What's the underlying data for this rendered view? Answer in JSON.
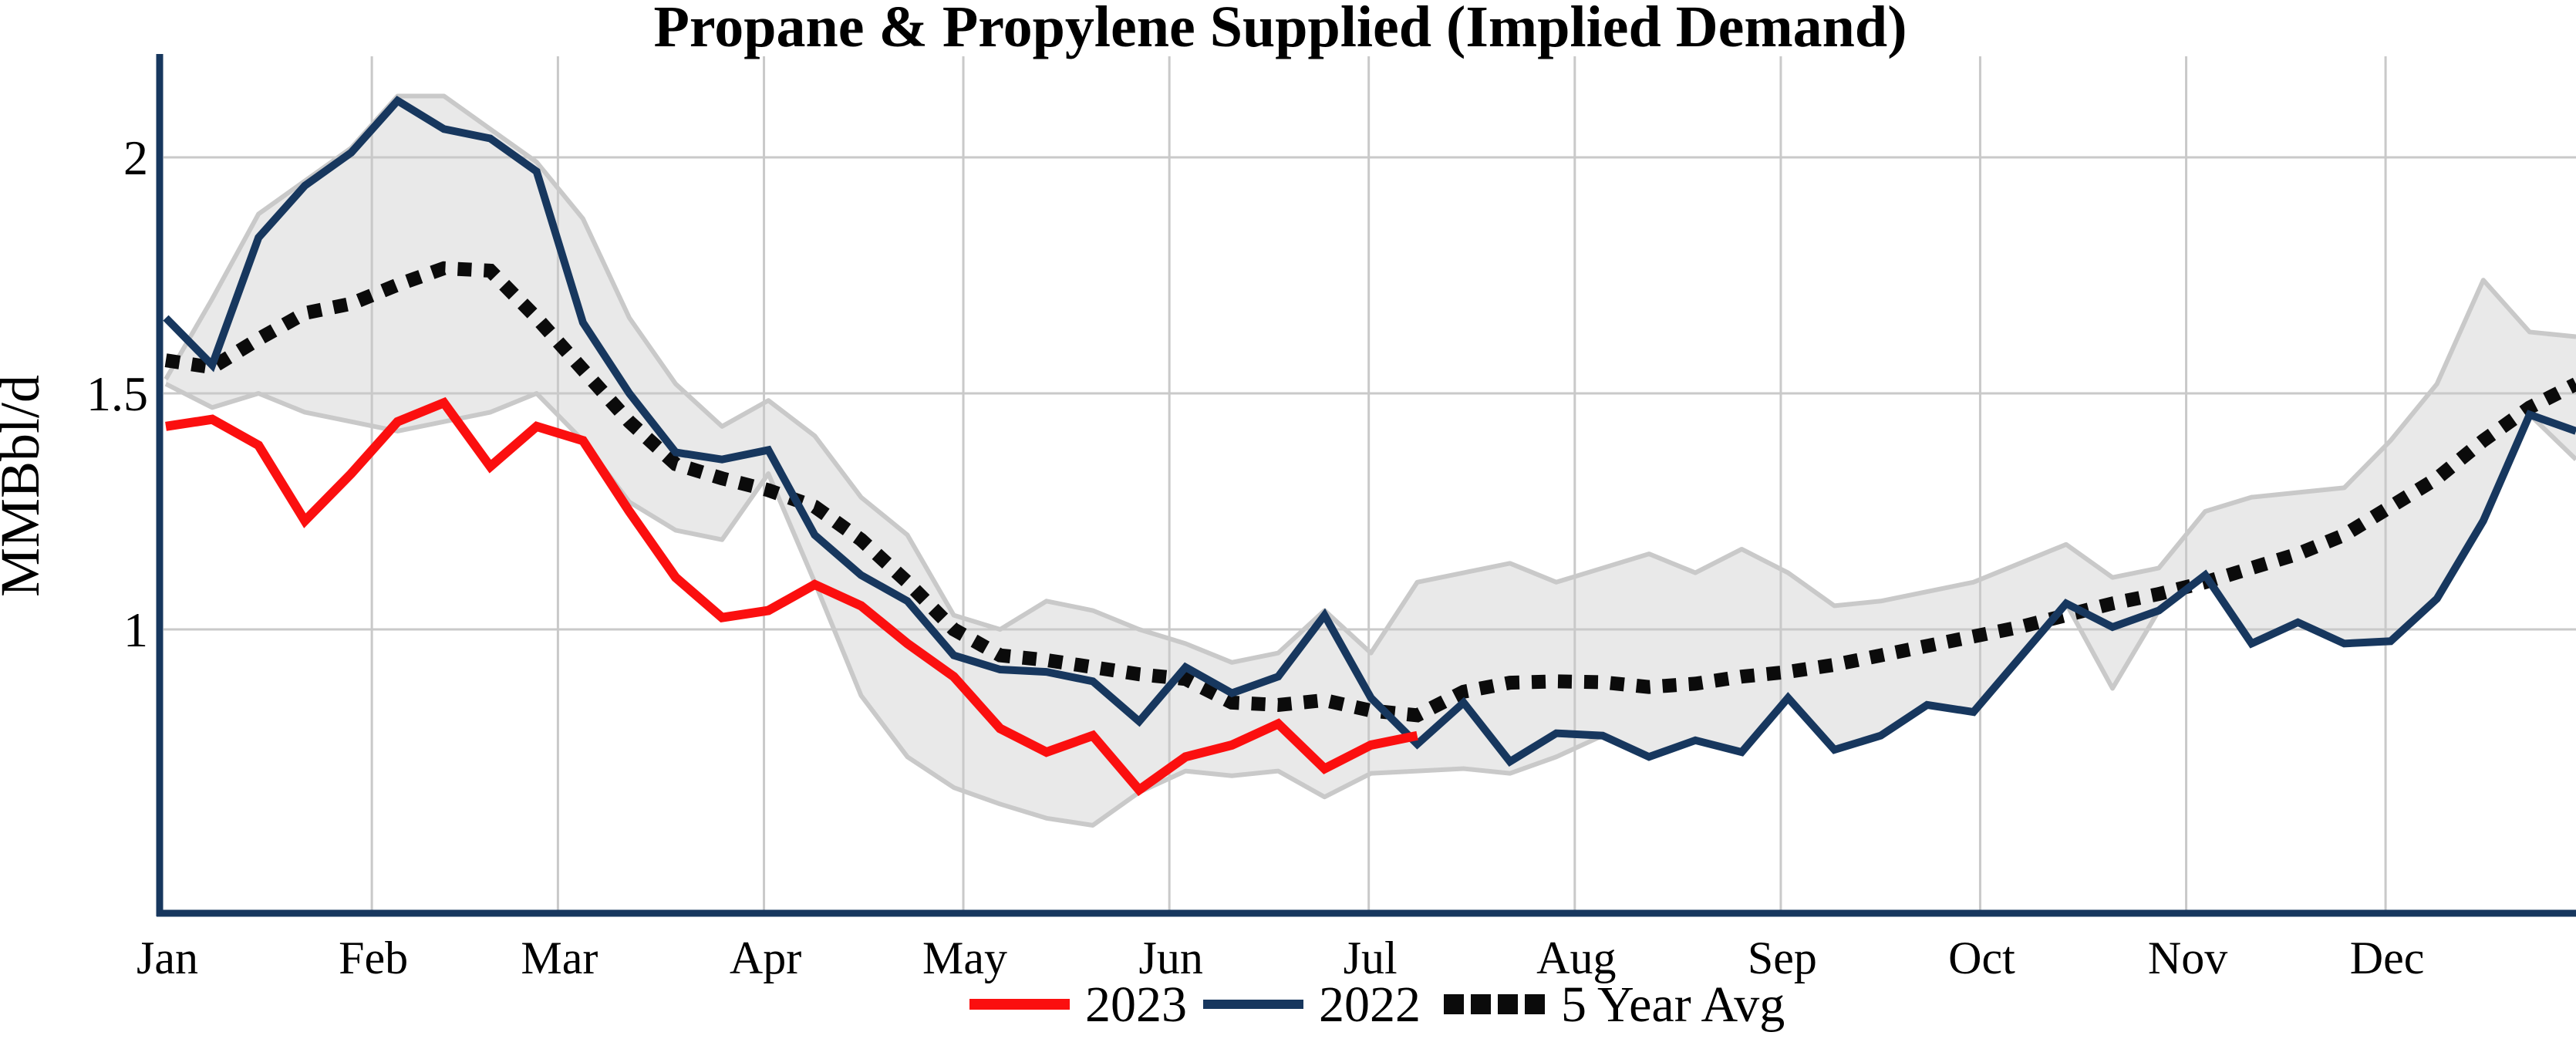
{
  "chart_data": {
    "type": "line",
    "title": "Propane & Propylene Supplied (Implied Demand)",
    "ylabel": "MMBbl/d",
    "xlabel": "",
    "unit": "MMBbl/d",
    "ylim": [
      0.4,
      2.21
    ],
    "grid": "months-vertical and 1.0/1.5/2.0 horizontal",
    "legend_position": "bottom-center",
    "y_ticks": [
      {
        "value": 2,
        "label": "2"
      },
      {
        "value": 1.5,
        "label": "1.5"
      },
      {
        "value": 1,
        "label": "1"
      }
    ],
    "months": [
      {
        "label": "Jan",
        "day": 0
      },
      {
        "label": "Feb",
        "day": 31
      },
      {
        "label": "Mar",
        "day": 59
      },
      {
        "label": "Apr",
        "day": 90
      },
      {
        "label": "May",
        "day": 120
      },
      {
        "label": "Jun",
        "day": 151
      },
      {
        "label": "Jul",
        "day": 181
      },
      {
        "label": "Aug",
        "day": 212
      },
      {
        "label": "Sep",
        "day": 243
      },
      {
        "label": "Oct",
        "day": 273
      },
      {
        "label": "Nov",
        "day": 304
      },
      {
        "label": "Dec",
        "day": 334
      }
    ],
    "weeks": 53,
    "series": [
      {
        "name": "2023",
        "color": "#fb0f0f",
        "width": 12,
        "style": "solid",
        "values": [
          1.43,
          1.445,
          1.39,
          1.23,
          1.33,
          1.44,
          1.48,
          1.345,
          1.43,
          1.4,
          1.25,
          1.11,
          1.025,
          1.04,
          1.095,
          1.05,
          0.97,
          0.9,
          0.79,
          0.74,
          0.775,
          0.66,
          0.73,
          0.755,
          0.8,
          0.705,
          0.755,
          0.775
        ]
      },
      {
        "name": "2022",
        "color": "#17375e",
        "width": 10,
        "style": "solid",
        "values": [
          1.66,
          1.56,
          1.83,
          1.94,
          2.01,
          2.12,
          2.06,
          2.04,
          1.97,
          1.65,
          1.5,
          1.375,
          1.36,
          1.38,
          1.2,
          1.115,
          1.06,
          0.945,
          0.915,
          0.91,
          0.89,
          0.805,
          0.92,
          0.865,
          0.9,
          1.03,
          0.855,
          0.757,
          0.845,
          0.72,
          0.78,
          0.775,
          0.73,
          0.765,
          0.74,
          0.855,
          0.745,
          0.775,
          0.84,
          0.825,
          0.94,
          1.055,
          1.005,
          1.04,
          1.115,
          0.97,
          1.015,
          0.97,
          0.975,
          1.065,
          1.23,
          1.455,
          1.42
        ]
      },
      {
        "name": "5 Year Avg",
        "color": "#0b0b0b",
        "width": 18,
        "style": "dotted",
        "values": [
          1.57,
          1.555,
          1.615,
          1.67,
          1.69,
          1.73,
          1.765,
          1.76,
          1.66,
          1.55,
          1.44,
          1.35,
          1.32,
          1.295,
          1.26,
          1.19,
          1.1,
          1.0,
          0.945,
          0.935,
          0.92,
          0.905,
          0.895,
          0.845,
          0.84,
          0.85,
          0.828,
          0.818,
          0.868,
          0.887,
          0.89,
          0.888,
          0.878,
          0.885,
          0.9,
          0.91,
          0.925,
          0.945,
          0.965,
          0.985,
          1.005,
          1.03,
          1.055,
          1.075,
          1.1,
          1.13,
          1.16,
          1.2,
          1.26,
          1.32,
          1.4,
          1.47,
          1.52
        ]
      }
    ],
    "band": {
      "name": "5-year range",
      "fill": "#e9e9e9",
      "edge": "#c9c9c9",
      "top": [
        1.53,
        1.7,
        1.88,
        1.95,
        2.02,
        2.13,
        2.13,
        2.06,
        1.99,
        1.87,
        1.66,
        1.52,
        1.43,
        1.485,
        1.41,
        1.28,
        1.2,
        1.03,
        1.0,
        1.06,
        1.04,
        1.0,
        0.97,
        0.93,
        0.95,
        1.04,
        0.95,
        1.1,
        1.12,
        1.14,
        1.1,
        1.13,
        1.16,
        1.12,
        1.17,
        1.12,
        1.05,
        1.06,
        1.08,
        1.1,
        1.14,
        1.18,
        1.11,
        1.13,
        1.25,
        1.28,
        1.29,
        1.3,
        1.4,
        1.52,
        1.74,
        1.63,
        1.62
      ],
      "bottom": [
        1.52,
        1.47,
        1.5,
        1.46,
        1.44,
        1.42,
        1.44,
        1.46,
        1.5,
        1.4,
        1.27,
        1.21,
        1.19,
        1.33,
        1.1,
        0.86,
        0.73,
        0.665,
        0.63,
        0.6,
        0.585,
        0.655,
        0.7,
        0.69,
        0.7,
        0.645,
        0.695,
        0.7,
        0.705,
        0.695,
        0.73,
        0.775,
        0.73,
        0.765,
        0.74,
        0.855,
        0.745,
        0.775,
        0.84,
        0.825,
        0.94,
        1.055,
        0.875,
        1.04,
        1.115,
        0.97,
        1.015,
        0.97,
        0.975,
        1.065,
        1.23,
        1.455,
        1.36
      ]
    },
    "axis_color": "#17375e",
    "grid_color": "#c9c9c9"
  },
  "legend": {
    "items": [
      {
        "label": "2023",
        "swatch": "red-line"
      },
      {
        "label": "2022",
        "swatch": "navy-line"
      },
      {
        "label": "5 Year Avg",
        "swatch": "black-dotted-line"
      }
    ]
  }
}
